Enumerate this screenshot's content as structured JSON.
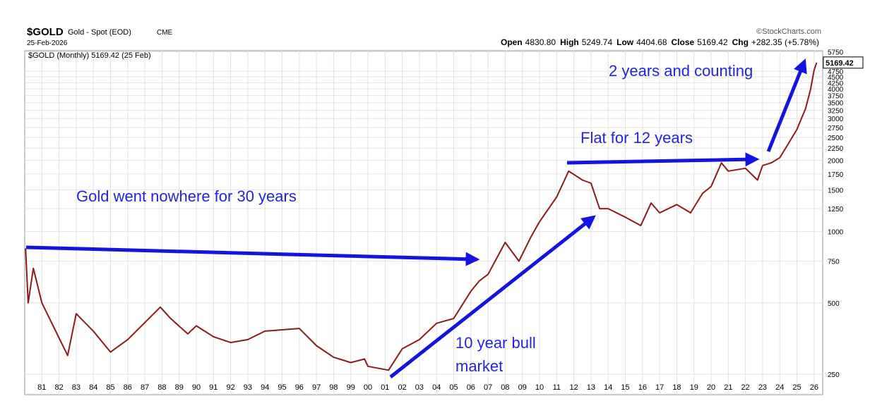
{
  "chart_data": {
    "type": "line",
    "title": "$GOLD",
    "subtitle": "Gold - Spot (EOD)",
    "exchange": "CME",
    "date": "25-Feb-2026",
    "source": "©StockCharts.com",
    "quote": [
      {
        "label": "Open",
        "value": "4830.80"
      },
      {
        "label": "High",
        "value": "5249.74"
      },
      {
        "label": "Low",
        "value": "4404.68"
      },
      {
        "label": "Close",
        "value": "5169.42"
      },
      {
        "label": "Chg",
        "value": "+282.35 (+5.78%)"
      }
    ],
    "legend_label": "$GOLD (Monthly) 5169.42 (25 Feb)",
    "last_price": 5169.42,
    "log_scale": true,
    "grid": true,
    "color": "#8b1a1a",
    "x": [
      1980.05,
      1980.2,
      1980.5,
      1981,
      1982.5,
      1983,
      1984,
      1985,
      1986,
      1987.9,
      1988.5,
      1989.5,
      1990,
      1991,
      1992,
      1993,
      1994,
      1995,
      1996,
      1997,
      1998,
      1999,
      1999.8,
      2000,
      2001.2,
      2002,
      2003,
      2004,
      2005,
      2006,
      2006.5,
      2007,
      2008,
      2008.8,
      2009.5,
      2010,
      2011,
      2011.7,
      2012.5,
      2013,
      2013.5,
      2014,
      2015,
      2015.9,
      2016.5,
      2017,
      2018,
      2018.8,
      2019.5,
      2020,
      2020.6,
      2021,
      2022,
      2022.7,
      2023,
      2023.5,
      2024,
      2024.5,
      2025,
      2025.5,
      2025.8,
      2026,
      2026.15
    ],
    "values": [
      850,
      500,
      700,
      500,
      300,
      450,
      380,
      310,
      350,
      480,
      430,
      370,
      400,
      360,
      340,
      350,
      380,
      385,
      390,
      330,
      295,
      280,
      290,
      270,
      260,
      320,
      350,
      410,
      430,
      560,
      620,
      660,
      900,
      750,
      950,
      1100,
      1400,
      1800,
      1650,
      1600,
      1250,
      1250,
      1150,
      1060,
      1320,
      1200,
      1300,
      1200,
      1450,
      1550,
      1950,
      1800,
      1850,
      1650,
      1900,
      1950,
      2050,
      2350,
      2700,
      3300,
      4000,
      4800,
      5169.42
    ],
    "xlim": [
      1980,
      2026.5
    ],
    "xticks": [
      {
        "value": 1981,
        "label": "81"
      },
      {
        "value": 1982,
        "label": "82"
      },
      {
        "value": 1983,
        "label": "83"
      },
      {
        "value": 1984,
        "label": "84"
      },
      {
        "value": 1985,
        "label": "85"
      },
      {
        "value": 1986,
        "label": "86"
      },
      {
        "value": 1987,
        "label": "87"
      },
      {
        "value": 1988,
        "label": "88"
      },
      {
        "value": 1989,
        "label": "89"
      },
      {
        "value": 1990,
        "label": "90"
      },
      {
        "value": 1991,
        "label": "91"
      },
      {
        "value": 1992,
        "label": "92"
      },
      {
        "value": 1993,
        "label": "93"
      },
      {
        "value": 1994,
        "label": "94"
      },
      {
        "value": 1995,
        "label": "95"
      },
      {
        "value": 1996,
        "label": "96"
      },
      {
        "value": 1997,
        "label": "97"
      },
      {
        "value": 1998,
        "label": "98"
      },
      {
        "value": 1999,
        "label": "99"
      },
      {
        "value": 2000,
        "label": "00"
      },
      {
        "value": 2001,
        "label": "01"
      },
      {
        "value": 2002,
        "label": "02"
      },
      {
        "value": 2003,
        "label": "03"
      },
      {
        "value": 2004,
        "label": "04"
      },
      {
        "value": 2005,
        "label": "05"
      },
      {
        "value": 2006,
        "label": "06"
      },
      {
        "value": 2007,
        "label": "07"
      },
      {
        "value": 2008,
        "label": "08"
      },
      {
        "value": 2009,
        "label": "09"
      },
      {
        "value": 2010,
        "label": "10"
      },
      {
        "value": 2011,
        "label": "11"
      },
      {
        "value": 2012,
        "label": "12"
      },
      {
        "value": 2013,
        "label": "13"
      },
      {
        "value": 2014,
        "label": "14"
      },
      {
        "value": 2015,
        "label": "15"
      },
      {
        "value": 2016,
        "label": "16"
      },
      {
        "value": 2017,
        "label": "17"
      },
      {
        "value": 2018,
        "label": "18"
      },
      {
        "value": 2019,
        "label": "19"
      },
      {
        "value": 2020,
        "label": "20"
      },
      {
        "value": 2021,
        "label": "21"
      },
      {
        "value": 2022,
        "label": "22"
      },
      {
        "value": 2023,
        "label": "23"
      },
      {
        "value": 2024,
        "label": "24"
      },
      {
        "value": 2025,
        "label": "25"
      },
      {
        "value": 2026,
        "label": "26"
      }
    ],
    "ylim": [
      205,
      5800
    ],
    "yticks": [
      250,
      500,
      750,
      1000,
      1250,
      1500,
      1750,
      2000,
      2250,
      2500,
      2750,
      3000,
      3250,
      3500,
      3750,
      4000,
      4250,
      4500,
      4750,
      5750
    ],
    "annotations": [
      {
        "text": "Gold went nowhere for 30 years"
      },
      {
        "text": "Flat for 12 years"
      },
      {
        "text": "10 year bull"
      },
      {
        "text": "market"
      },
      {
        "text": "2 years and counting"
      }
    ]
  }
}
